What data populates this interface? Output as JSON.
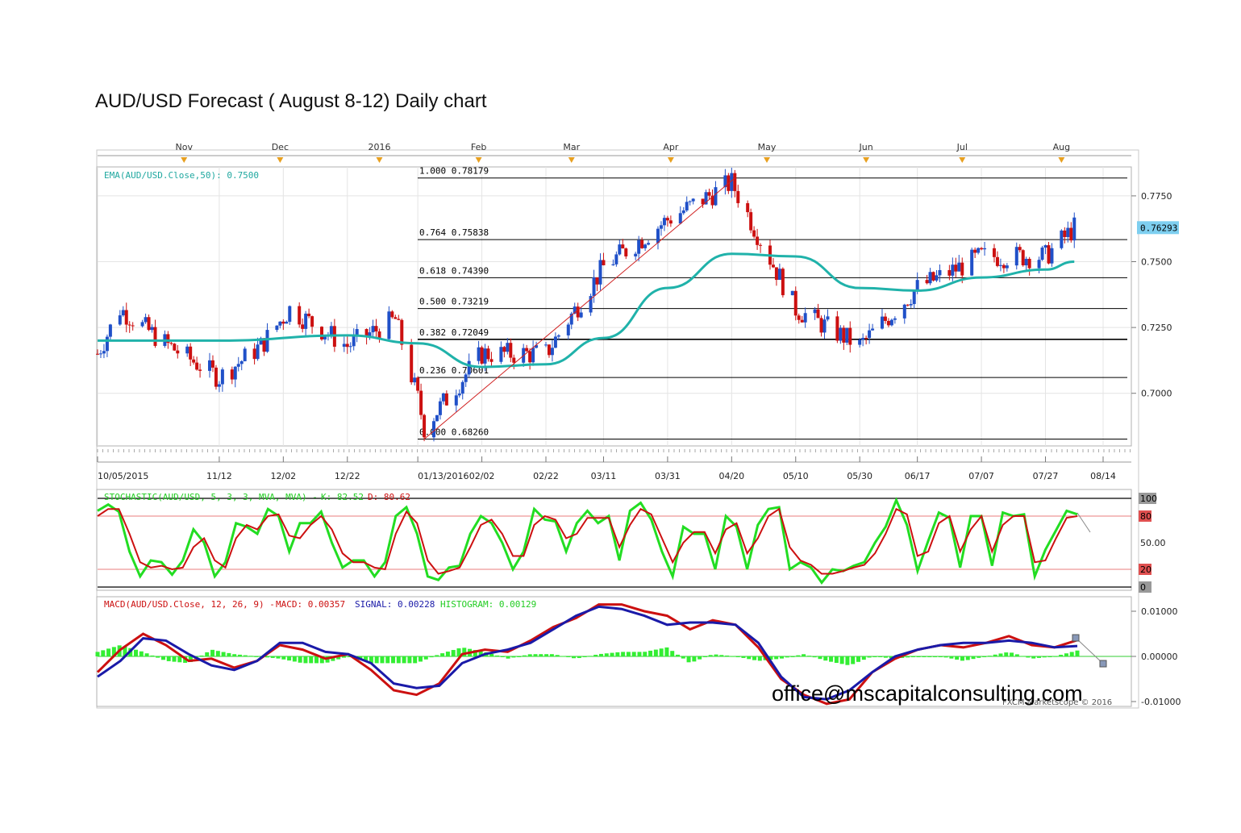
{
  "page": {
    "title": "AUD/USD Forecast ( August 8-12) Daily chart",
    "watermark_email": "office@mscapitalconsulting.com",
    "copyright": "FXCM Marketscope © 2016"
  },
  "colors": {
    "ema": "#20b2aa",
    "bull_candle": "#2050c8",
    "bear_candle": "#cc1010",
    "fib_line": "#000000",
    "stoch_k": "#22dd22",
    "stoch_d": "#cc1010",
    "macd": "#cc1010",
    "signal": "#1a1aa8",
    "histogram": "#33ee33",
    "price_badge": "#7ecff0"
  },
  "chart_data": [
    {
      "type": "candlestick",
      "panel": "price",
      "title": "",
      "indicator_label": "EMA(AUD/USD.Close,50): 0.7500",
      "top_months": [
        "Nov",
        "Dec",
        "2016",
        "Feb",
        "Mar",
        "Apr",
        "May",
        "Jun",
        "Jul",
        "Aug"
      ],
      "x_date_labels": [
        "10/05/2015",
        "11/12",
        "12/02",
        "12/22",
        "01/13/2016",
        "02/02",
        "02/22",
        "03/11",
        "03/31",
        "04/20",
        "05/10",
        "05/30",
        "06/17",
        "07/07",
        "07/27",
        "08/14"
      ],
      "y_ticks": [
        "0.7750",
        "0.7500",
        "0.7250",
        "0.7000"
      ],
      "ylim": [
        0.68,
        0.786
      ],
      "last_price_label": "0.76293",
      "last_price": 0.76293,
      "fib_levels": [
        {
          "label": "1.000 0.78179",
          "ratio": 1.0,
          "value": 0.78179
        },
        {
          "label": "0.764 0.75838",
          "ratio": 0.764,
          "value": 0.75838
        },
        {
          "label": "0.618 0.74390",
          "ratio": 0.618,
          "value": 0.7439
        },
        {
          "label": "0.500 0.73219",
          "ratio": 0.5,
          "value": 0.73219
        },
        {
          "label": "0.382 0.72049",
          "ratio": 0.382,
          "value": 0.72049
        },
        {
          "label": "0.236 0.70601",
          "ratio": 0.236,
          "value": 0.70601
        },
        {
          "label": "0.000 0.68260",
          "ratio": 0.0,
          "value": 0.6826
        }
      ],
      "close_anchors": [
        {
          "date": "10/05/2015",
          "close": 0.715
        },
        {
          "date": "10/12/2015",
          "close": 0.732
        },
        {
          "date": "10/26/2015",
          "close": 0.719
        },
        {
          "date": "11/12/2015",
          "close": 0.706
        },
        {
          "date": "11/25/2015",
          "close": 0.718
        },
        {
          "date": "12/04/2015",
          "close": 0.732
        },
        {
          "date": "12/22/2015",
          "close": 0.718
        },
        {
          "date": "01/06/2016",
          "close": 0.728
        },
        {
          "date": "01/13/2016",
          "close": 0.698
        },
        {
          "date": "01/15/2016",
          "close": 0.687
        },
        {
          "date": "02/02/2016",
          "close": 0.715
        },
        {
          "date": "02/22/2016",
          "close": 0.715
        },
        {
          "date": "03/11/2016",
          "close": 0.748
        },
        {
          "date": "03/31/2016",
          "close": 0.766
        },
        {
          "date": "04/20/2016",
          "close": 0.78
        },
        {
          "date": "05/10/2016",
          "close": 0.732
        },
        {
          "date": "05/30/2016",
          "close": 0.718
        },
        {
          "date": "06/17/2016",
          "close": 0.74
        },
        {
          "date": "07/07/2016",
          "close": 0.752
        },
        {
          "date": "07/27/2016",
          "close": 0.752
        },
        {
          "date": "08/05/2016",
          "close": 0.7629
        }
      ],
      "ema50_anchors": [
        {
          "date": "10/05/2015",
          "value": 0.72
        },
        {
          "date": "11/12/2015",
          "value": 0.72
        },
        {
          "date": "12/22/2015",
          "value": 0.722
        },
        {
          "date": "01/13/2016",
          "value": 0.719
        },
        {
          "date": "02/02/2016",
          "value": 0.71
        },
        {
          "date": "02/22/2016",
          "value": 0.711
        },
        {
          "date": "03/11/2016",
          "value": 0.721
        },
        {
          "date": "03/31/2016",
          "value": 0.74
        },
        {
          "date": "04/20/2016",
          "value": 0.753
        },
        {
          "date": "05/10/2016",
          "value": 0.752
        },
        {
          "date": "05/30/2016",
          "value": 0.74
        },
        {
          "date": "06/17/2016",
          "value": 0.739
        },
        {
          "date": "07/07/2016",
          "value": 0.744
        },
        {
          "date": "07/27/2016",
          "value": 0.747
        },
        {
          "date": "08/05/2016",
          "value": 0.75
        }
      ]
    },
    {
      "type": "line",
      "panel": "stochastic",
      "indicator_label": "STOCHASTIC(AUD/USD, 5, 3, 3, MVA, MVA) -",
      "k_label": "K: 82.52",
      "d_label": "D: 80.62",
      "y_ticks": [
        "100",
        "80",
        "50.00",
        "20",
        "0"
      ],
      "ylim": [
        0,
        100
      ],
      "bands": [
        20,
        80
      ],
      "k_points": [
        86,
        93,
        85,
        40,
        12,
        30,
        28,
        14,
        30,
        65,
        50,
        12,
        28,
        72,
        68,
        60,
        88,
        80,
        40,
        72,
        72,
        85,
        50,
        22,
        30,
        30,
        12,
        28,
        80,
        90,
        60,
        12,
        8,
        22,
        24,
        60,
        80,
        72,
        50,
        20,
        40,
        88,
        76,
        74,
        40,
        72,
        86,
        72,
        80,
        30,
        86,
        95,
        76,
        40,
        12,
        68,
        60,
        60,
        20,
        80,
        68,
        20,
        70,
        88,
        90,
        20,
        28,
        22,
        5,
        20,
        18,
        24,
        28,
        50,
        68,
        98,
        70,
        18,
        52,
        84,
        78,
        22,
        80,
        80,
        24,
        84,
        80,
        82,
        12,
        42,
        64,
        86,
        82
      ],
      "d_points": [
        80,
        88,
        88,
        60,
        28,
        22,
        24,
        20,
        22,
        45,
        55,
        30,
        22,
        55,
        70,
        65,
        80,
        82,
        58,
        55,
        70,
        80,
        65,
        38,
        28,
        28,
        22,
        20,
        60,
        85,
        72,
        30,
        15,
        18,
        22,
        45,
        70,
        76,
        60,
        35,
        35,
        70,
        80,
        76,
        55,
        60,
        78,
        78,
        78,
        45,
        70,
        88,
        82,
        55,
        28,
        50,
        62,
        62,
        38,
        65,
        72,
        38,
        55,
        80,
        88,
        45,
        30,
        25,
        15,
        15,
        18,
        22,
        25,
        38,
        60,
        88,
        82,
        35,
        40,
        72,
        80,
        40,
        65,
        80,
        40,
        70,
        80,
        80,
        28,
        30,
        55,
        78,
        80
      ]
    },
    {
      "type": "line",
      "panel": "macd",
      "indicator_label": "MACD(AUD/USD.Close, 12, 26, 9) -",
      "macd_label": "MACD: 0.00357",
      "signal_label": "SIGNAL: 0.00228",
      "histogram_label": "HISTOGRAM: 0.00129",
      "y_ticks": [
        "0.01000",
        "0.00000",
        "-0.01000"
      ],
      "ylim": [
        -0.0105,
        0.0115
      ],
      "macd_points": [
        -0.0035,
        0.0015,
        0.005,
        0.0025,
        -0.001,
        -0.0005,
        -0.0025,
        -0.001,
        0.0025,
        0.0015,
        -0.0005,
        0.0005,
        -0.003,
        -0.0075,
        -0.0085,
        -0.006,
        0.0005,
        0.0015,
        0.001,
        0.0035,
        0.0065,
        0.0085,
        0.0115,
        0.0115,
        0.01,
        0.009,
        0.006,
        0.008,
        0.007,
        0.002,
        -0.005,
        -0.0085,
        -0.0105,
        -0.0095,
        -0.0035,
        -0.0005,
        0.0015,
        0.0025,
        0.002,
        0.003,
        0.0045,
        0.0025,
        0.002,
        0.0036
      ],
      "signal_points": [
        -0.0045,
        -0.001,
        0.004,
        0.0035,
        0.0005,
        -0.002,
        -0.003,
        -0.001,
        0.003,
        0.003,
        0.001,
        0.0005,
        -0.0015,
        -0.006,
        -0.007,
        -0.0065,
        -0.0015,
        0.0005,
        0.0015,
        0.003,
        0.006,
        0.009,
        0.011,
        0.0105,
        0.009,
        0.007,
        0.0075,
        0.0075,
        0.007,
        0.003,
        -0.0045,
        -0.009,
        -0.0095,
        -0.0075,
        -0.0035,
        0.0,
        0.0015,
        0.0025,
        0.003,
        0.003,
        0.0035,
        0.003,
        0.002,
        0.0023
      ]
    }
  ]
}
